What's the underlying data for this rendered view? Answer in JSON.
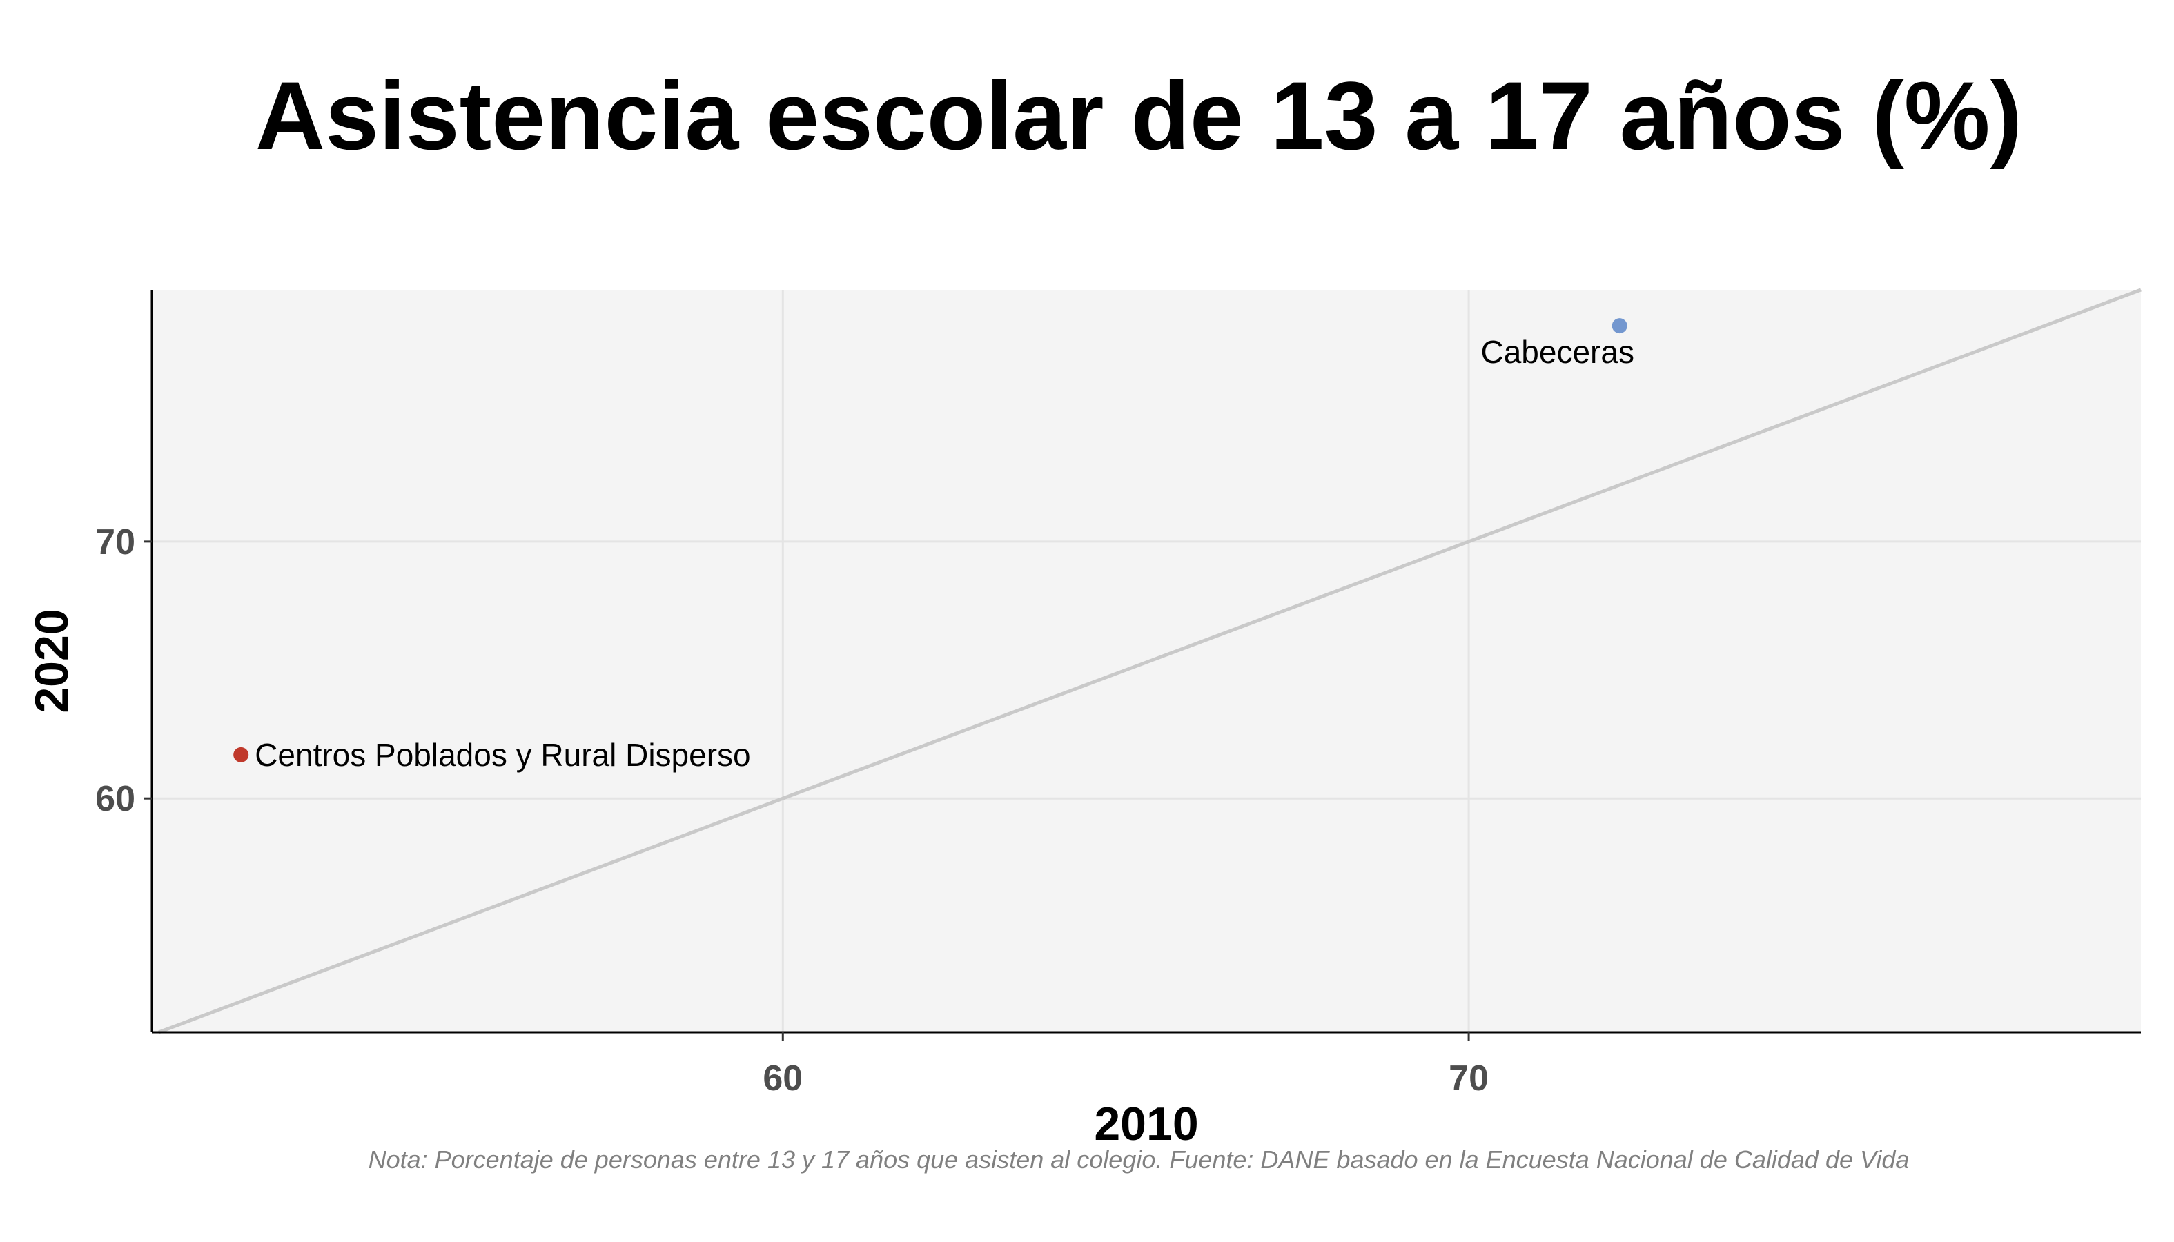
{
  "chart_data": {
    "type": "scatter",
    "title": "Asistencia escolar de 13 a 17 años (%)",
    "xlabel": "2010",
    "ylabel": "2020",
    "xlim": [
      50.8,
      79.8
    ],
    "ylim": [
      50.9,
      79.8
    ],
    "x_ticks": [
      60,
      70
    ],
    "y_ticks": [
      60,
      70
    ],
    "grid": true,
    "reference_line": "y = x",
    "points": [
      {
        "label": "Cabeceras",
        "x": 72.2,
        "y": 78.4,
        "color": "#7397CF"
      },
      {
        "label": "Centros Poblados y Rural Disperso",
        "x": 52.1,
        "y": 61.7,
        "color": "#C0392B"
      }
    ],
    "note": "Nota: Porcentaje de personas entre 13 y 17 años que asisten al colegio. Fuente: DANE basado en la Encuesta Nacional de Calidad de Vida"
  }
}
